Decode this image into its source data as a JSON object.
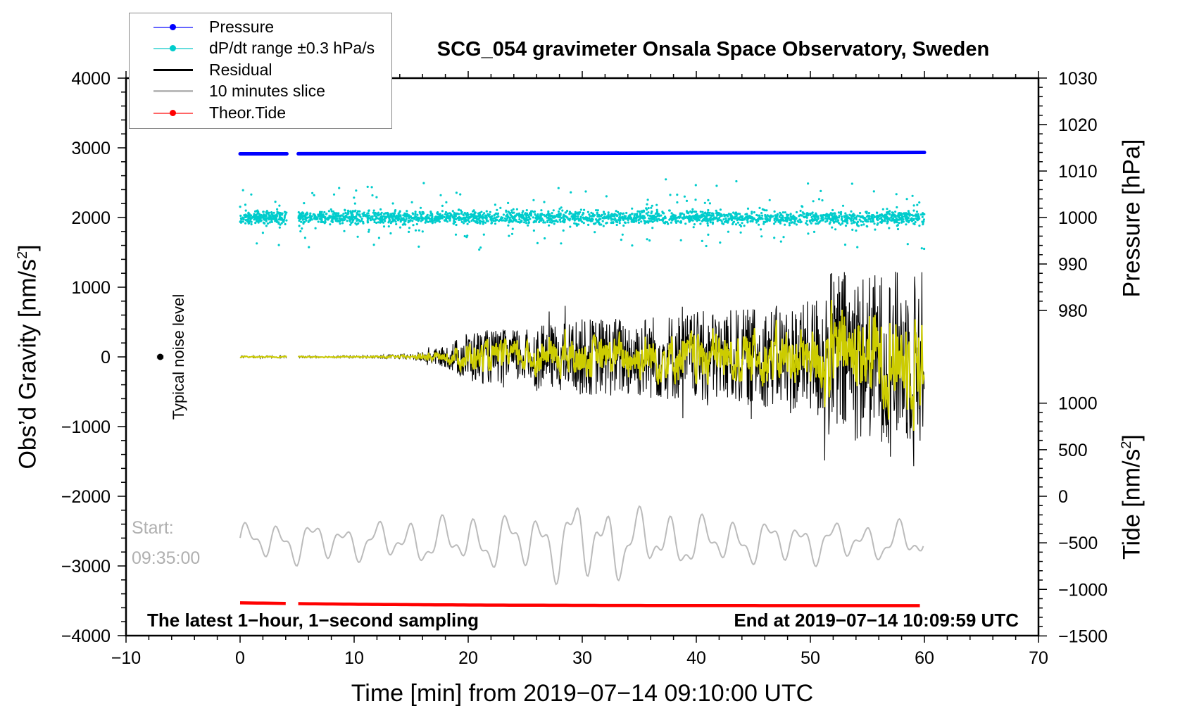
{
  "chart_data": {
    "type": "line",
    "title": "SCG_054 gravimeter Onsala Space Observatory, Sweden",
    "xlabel": "Time [min] from 2019−07−14 09:10:00 UTC",
    "ylabel": "Obs’d Gravity [nm/s",
    "ylabel_sup": "2",
    "ylabel_end": "]",
    "y2label_pressure": "Pressure [hPa]",
    "y2label_tide": "Tide [nm/s",
    "y2label_tide_sup": "2",
    "y2label_tide_end": "]",
    "xlim": [
      -10,
      70
    ],
    "ylim": [
      -4000,
      4000
    ],
    "xticks": [
      "−10",
      "0",
      "10",
      "20",
      "30",
      "40",
      "50",
      "60",
      "70"
    ],
    "xtick_values": [
      -10,
      0,
      10,
      20,
      30,
      40,
      50,
      60,
      70
    ],
    "yticks": [
      "−4000",
      "−3000",
      "−2000",
      "−1000",
      "0",
      "1000",
      "2000",
      "3000",
      "4000"
    ],
    "ytick_values": [
      -4000,
      -3000,
      -2000,
      -1000,
      0,
      1000,
      2000,
      3000,
      4000
    ],
    "pressure_ticks": [
      "980",
      "990",
      "1000",
      "1010",
      "1020",
      "1030"
    ],
    "pressure_tick_values": [
      980,
      990,
      1000,
      1010,
      1020,
      1030
    ],
    "tide_ticks": [
      "−1500",
      "−1000",
      "−500",
      "0",
      "500",
      "1000"
    ],
    "tide_tick_values": [
      -1500,
      -1000,
      -500,
      0,
      500,
      1000
    ],
    "legend": {
      "placement": "top-left",
      "entries": [
        {
          "label": "Pressure",
          "color": "#0000ff",
          "marker": true
        },
        {
          "label": "dP/dt range ±0.3 hPa/s",
          "color": "#00cccc",
          "marker": true
        },
        {
          "label": "Residual",
          "color": "#000000",
          "marker": false
        },
        {
          "label": "10 minutes slice",
          "color": "#bbbbbb",
          "marker": false
        },
        {
          "label": "Theor.Tide",
          "color": "#ff0000",
          "marker": true
        }
      ]
    },
    "annotations": {
      "noise": "Typical noise level",
      "start_label": "Start:",
      "start_time": "09:35:00",
      "sampling": "The latest 1−hour, 1−second sampling",
      "end": "End at 2019−07−14 10:09:59 UTC"
    },
    "data_gap_min": [
      4.1,
      5.1
    ],
    "series": {
      "pressure_hpa": {
        "t": [
          0,
          30,
          60
        ],
        "values": [
          1013.7,
          1013.8,
          1014.0
        ],
        "color": "#0000ff"
      },
      "dpdt_scatter": {
        "center_gravity": 2000,
        "typical_spread": 100,
        "outlier_spread": 450,
        "color": "#00cccc"
      },
      "residual_amplitude_per_5min": {
        "t": [
          0,
          5,
          10,
          15,
          18,
          20,
          25,
          30,
          35,
          40,
          45,
          50,
          52,
          55,
          60
        ],
        "values": [
          15,
          15,
          15,
          40,
          150,
          380,
          400,
          550,
          600,
          650,
          700,
          800,
          1300,
          1200,
          1300
        ],
        "color": "#000000",
        "filtered_color": "#cccc00"
      },
      "tide_nm_s2": {
        "t": [
          0,
          10,
          20,
          30,
          40,
          50,
          60
        ],
        "values": [
          -1145,
          -1160,
          -1168,
          -1172,
          -1174,
          -1175,
          -1175
        ],
        "color": "#ff0000"
      },
      "slice_gravity": {
        "center": -2650,
        "amplitude": [
          250,
          300,
          250,
          300,
          350,
          400,
          600,
          450,
          350,
          300,
          300,
          250,
          300
        ],
        "color": "#bbbbbb"
      }
    }
  }
}
